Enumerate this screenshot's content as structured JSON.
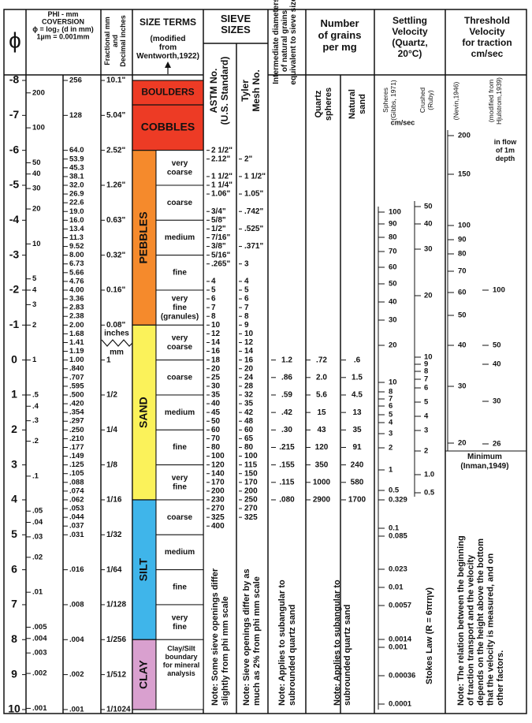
{
  "header": {
    "phi": "ϕ",
    "conversion": [
      "PHI - mm",
      "COVERSION",
      "ϕ = log₂ (d in mm)",
      "1µm = 0.001mm"
    ],
    "fractional": [
      "Fractional mm",
      "and",
      "Decimal inches"
    ],
    "size_terms": "SIZE TERMS",
    "size_terms_source": [
      "(modified",
      "from",
      "Wentworth,1922)"
    ],
    "sieve": [
      "SIEVE",
      "SIZES"
    ],
    "astm": [
      "ASTM No.",
      "(U.S. Standard)"
    ],
    "tyler": [
      "Tyler",
      "Mesh No."
    ],
    "diameters": [
      "Intermediate diameters",
      "of natural grains",
      "equivalent to sieve size"
    ],
    "grains": [
      "Number",
      "of grains",
      "per mg"
    ],
    "quartz": [
      "Quartz",
      "spheres"
    ],
    "natural": [
      "Natural",
      "sand"
    ],
    "settling": [
      "Settling",
      "Velocity",
      "(Quartz,",
      "20°C)"
    ],
    "spheres": [
      "Spheres",
      "(Gibbs, 1971)"
    ],
    "crushed": [
      "Crushed",
      "(Ruby)"
    ],
    "settling_unit": "cm/sec",
    "threshold": [
      "Threshold",
      "Velocity",
      "for traction",
      "cm/sec"
    ],
    "nevin": "(Nevin,1946)",
    "hjulstrom": [
      "(modified from",
      "Hjulstrom,1939)"
    ],
    "flow": [
      "in flow",
      "of 1m",
      "depth"
    ]
  },
  "phi_scale": [
    -8,
    -7,
    -6,
    -5,
    -4,
    -3,
    -2,
    -1,
    0,
    1,
    2,
    3,
    4,
    5,
    6,
    7,
    8,
    9,
    10
  ],
  "mm_log_scale": [
    "200",
    "100",
    "50",
    "40",
    "30",
    "20",
    "10",
    "5",
    "4",
    "3",
    "2",
    "1",
    ".5",
    ".4",
    ".3",
    ".2",
    ".1",
    ".05",
    ".04",
    ".03",
    ".02",
    ".01",
    ".005",
    ".004",
    ".003",
    ".002",
    ".001"
  ],
  "mm_values": [
    "256",
    "128",
    "64.0",
    "53.9",
    "45.3",
    "38.1",
    "32.0",
    "26.9",
    "22.6",
    "19.0",
    "16.0",
    "13.4",
    "11.3",
    "9.52",
    "8.00",
    "6.73",
    "5.66",
    "4.76",
    "4.00",
    "3.36",
    "2.83",
    "2.38",
    "2.00",
    "1.68",
    "1.41",
    "1.19",
    "1.00",
    ".840",
    ".707",
    ".595",
    ".500",
    ".420",
    ".354",
    ".297",
    ".250",
    ".210",
    ".177",
    ".149",
    ".125",
    ".105",
    ".088",
    ".074",
    ".062",
    ".053",
    ".044",
    ".037",
    ".031",
    ".016",
    ".008",
    ".004",
    ".002",
    ".001"
  ],
  "fractional": [
    "10.1\"",
    "5.04\"",
    "2.52\"",
    "1.26\"",
    "0.63\"",
    "0.32\"",
    "0.16\"",
    "0.08\"",
    "1",
    "1/2",
    "1/4",
    "1/8",
    "1/16",
    "1/32",
    "1/64",
    "1/128",
    "1/256",
    "1/512",
    "1/1024"
  ],
  "fractional_units": [
    "inches",
    "mm"
  ],
  "size_terms": [
    {
      "name": "BOULDERS",
      "color": "#ed3b25"
    },
    {
      "name": "COBBLES",
      "color": "#ed3b25"
    },
    {
      "name": "PEBBLES",
      "color": "#f58a2c",
      "subclasses": [
        [
          "very",
          "coarse"
        ],
        "coarse",
        "medium",
        "fine",
        [
          "very",
          "fine",
          "(granules)"
        ]
      ]
    },
    {
      "name": "SAND",
      "color": "#fbf25a",
      "subclasses": [
        [
          "very",
          "coarse"
        ],
        "coarse",
        "medium",
        "fine",
        [
          "very",
          "fine"
        ]
      ]
    },
    {
      "name": "SILT",
      "color": "#3fb5ea",
      "subclasses": [
        "coarse",
        "medium",
        "fine",
        [
          "very",
          "fine"
        ]
      ]
    },
    {
      "name": "CLAY",
      "color": "#d9a0cf",
      "note": [
        "Clay/Silt",
        "boundary",
        "for mineral",
        "analysis"
      ]
    }
  ],
  "astm": [
    "2 1/2\"",
    "2.12\"",
    null,
    "1 1/2\"",
    "1 1/4\"",
    "1.06\"",
    null,
    "3/4\"",
    "5/8\"",
    "1/2\"",
    "7/16\"",
    "3/8\"",
    "5/16\"",
    ".265\"",
    null,
    "4",
    "5",
    "6",
    "7",
    "8",
    "10",
    "12",
    "14",
    "16",
    "18",
    "20",
    "25",
    "30",
    "35",
    "40",
    "45",
    "50",
    "60",
    "70",
    "80",
    "100",
    "120",
    "140",
    "170",
    "200",
    "230",
    "270",
    "325",
    "400"
  ],
  "tyler": [
    null,
    "2\"",
    null,
    "1 1/2\"",
    null,
    "1.05\"",
    null,
    ".742\"",
    null,
    ".525\"",
    null,
    ".371\"",
    null,
    "3",
    null,
    "4",
    "5",
    "6",
    "7",
    "8",
    "9",
    "10",
    "12",
    "14",
    "16",
    "20",
    "24",
    "28",
    "32",
    "35",
    "42",
    "48",
    "60",
    "65",
    "80",
    "100",
    "115",
    "150",
    "170",
    "200",
    "250",
    "270",
    "325"
  ],
  "diameters": [
    "1.2",
    ".86",
    ".59",
    ".42",
    ".30",
    ".215",
    ".155",
    ".115",
    ".080"
  ],
  "quartz_spheres": [
    ".72",
    "2.0",
    "5.6",
    "15",
    "43",
    "120",
    "350",
    "1000",
    "2900"
  ],
  "natural_sand": [
    ".6",
    "1.5",
    "4.5",
    "13",
    "35",
    "91",
    "240",
    "580",
    "1700"
  ],
  "settling_spheres": [
    "100",
    "90",
    "80",
    "70",
    "60",
    "50",
    "40",
    "30",
    "20",
    "10",
    "8",
    "7",
    "6",
    "5",
    "4",
    "3",
    "2",
    "1",
    "0.5",
    "0.329",
    "0.1",
    "0.085",
    "0.023",
    "0.01",
    "0.0057",
    "0.0014",
    "0.001",
    "0.00036",
    "0.0001"
  ],
  "settling_crushed": [
    "50",
    "40",
    "30",
    "20",
    "10",
    "9",
    "8",
    "7",
    "6",
    "5",
    "4",
    "3",
    "2",
    "1.0",
    "0.5"
  ],
  "threshold_nevin": [
    "200",
    "150",
    "100",
    "90",
    "80",
    "70",
    "60",
    "50",
    "40",
    "30",
    "20"
  ],
  "threshold_hjulstrom": [
    "100",
    "50",
    "40",
    "30",
    "26"
  ],
  "threshold_minimum": [
    "Minimum",
    "(Inman,1949)"
  ],
  "notes": {
    "astm": [
      "Note: Some sieve openings differ",
      "slightly from phi mm scale"
    ],
    "tyler": [
      "Note: Sieve openings differ by as",
      "much as 2% from phi mm scale"
    ],
    "diameters": [
      "Note: Applies to subangular to",
      "subrounded quartz sand"
    ],
    "grains": [
      "Note: Applies to subangular to",
      "subrounded quartz sand"
    ],
    "stokes": "Stokes Law (R = 6πrηv)",
    "threshold": [
      "Note: The relation between the beginning",
      "of traction transport and the velocity",
      "depends on the height above the bottom",
      "that the velocity is measured, and on",
      "other factors."
    ]
  }
}
